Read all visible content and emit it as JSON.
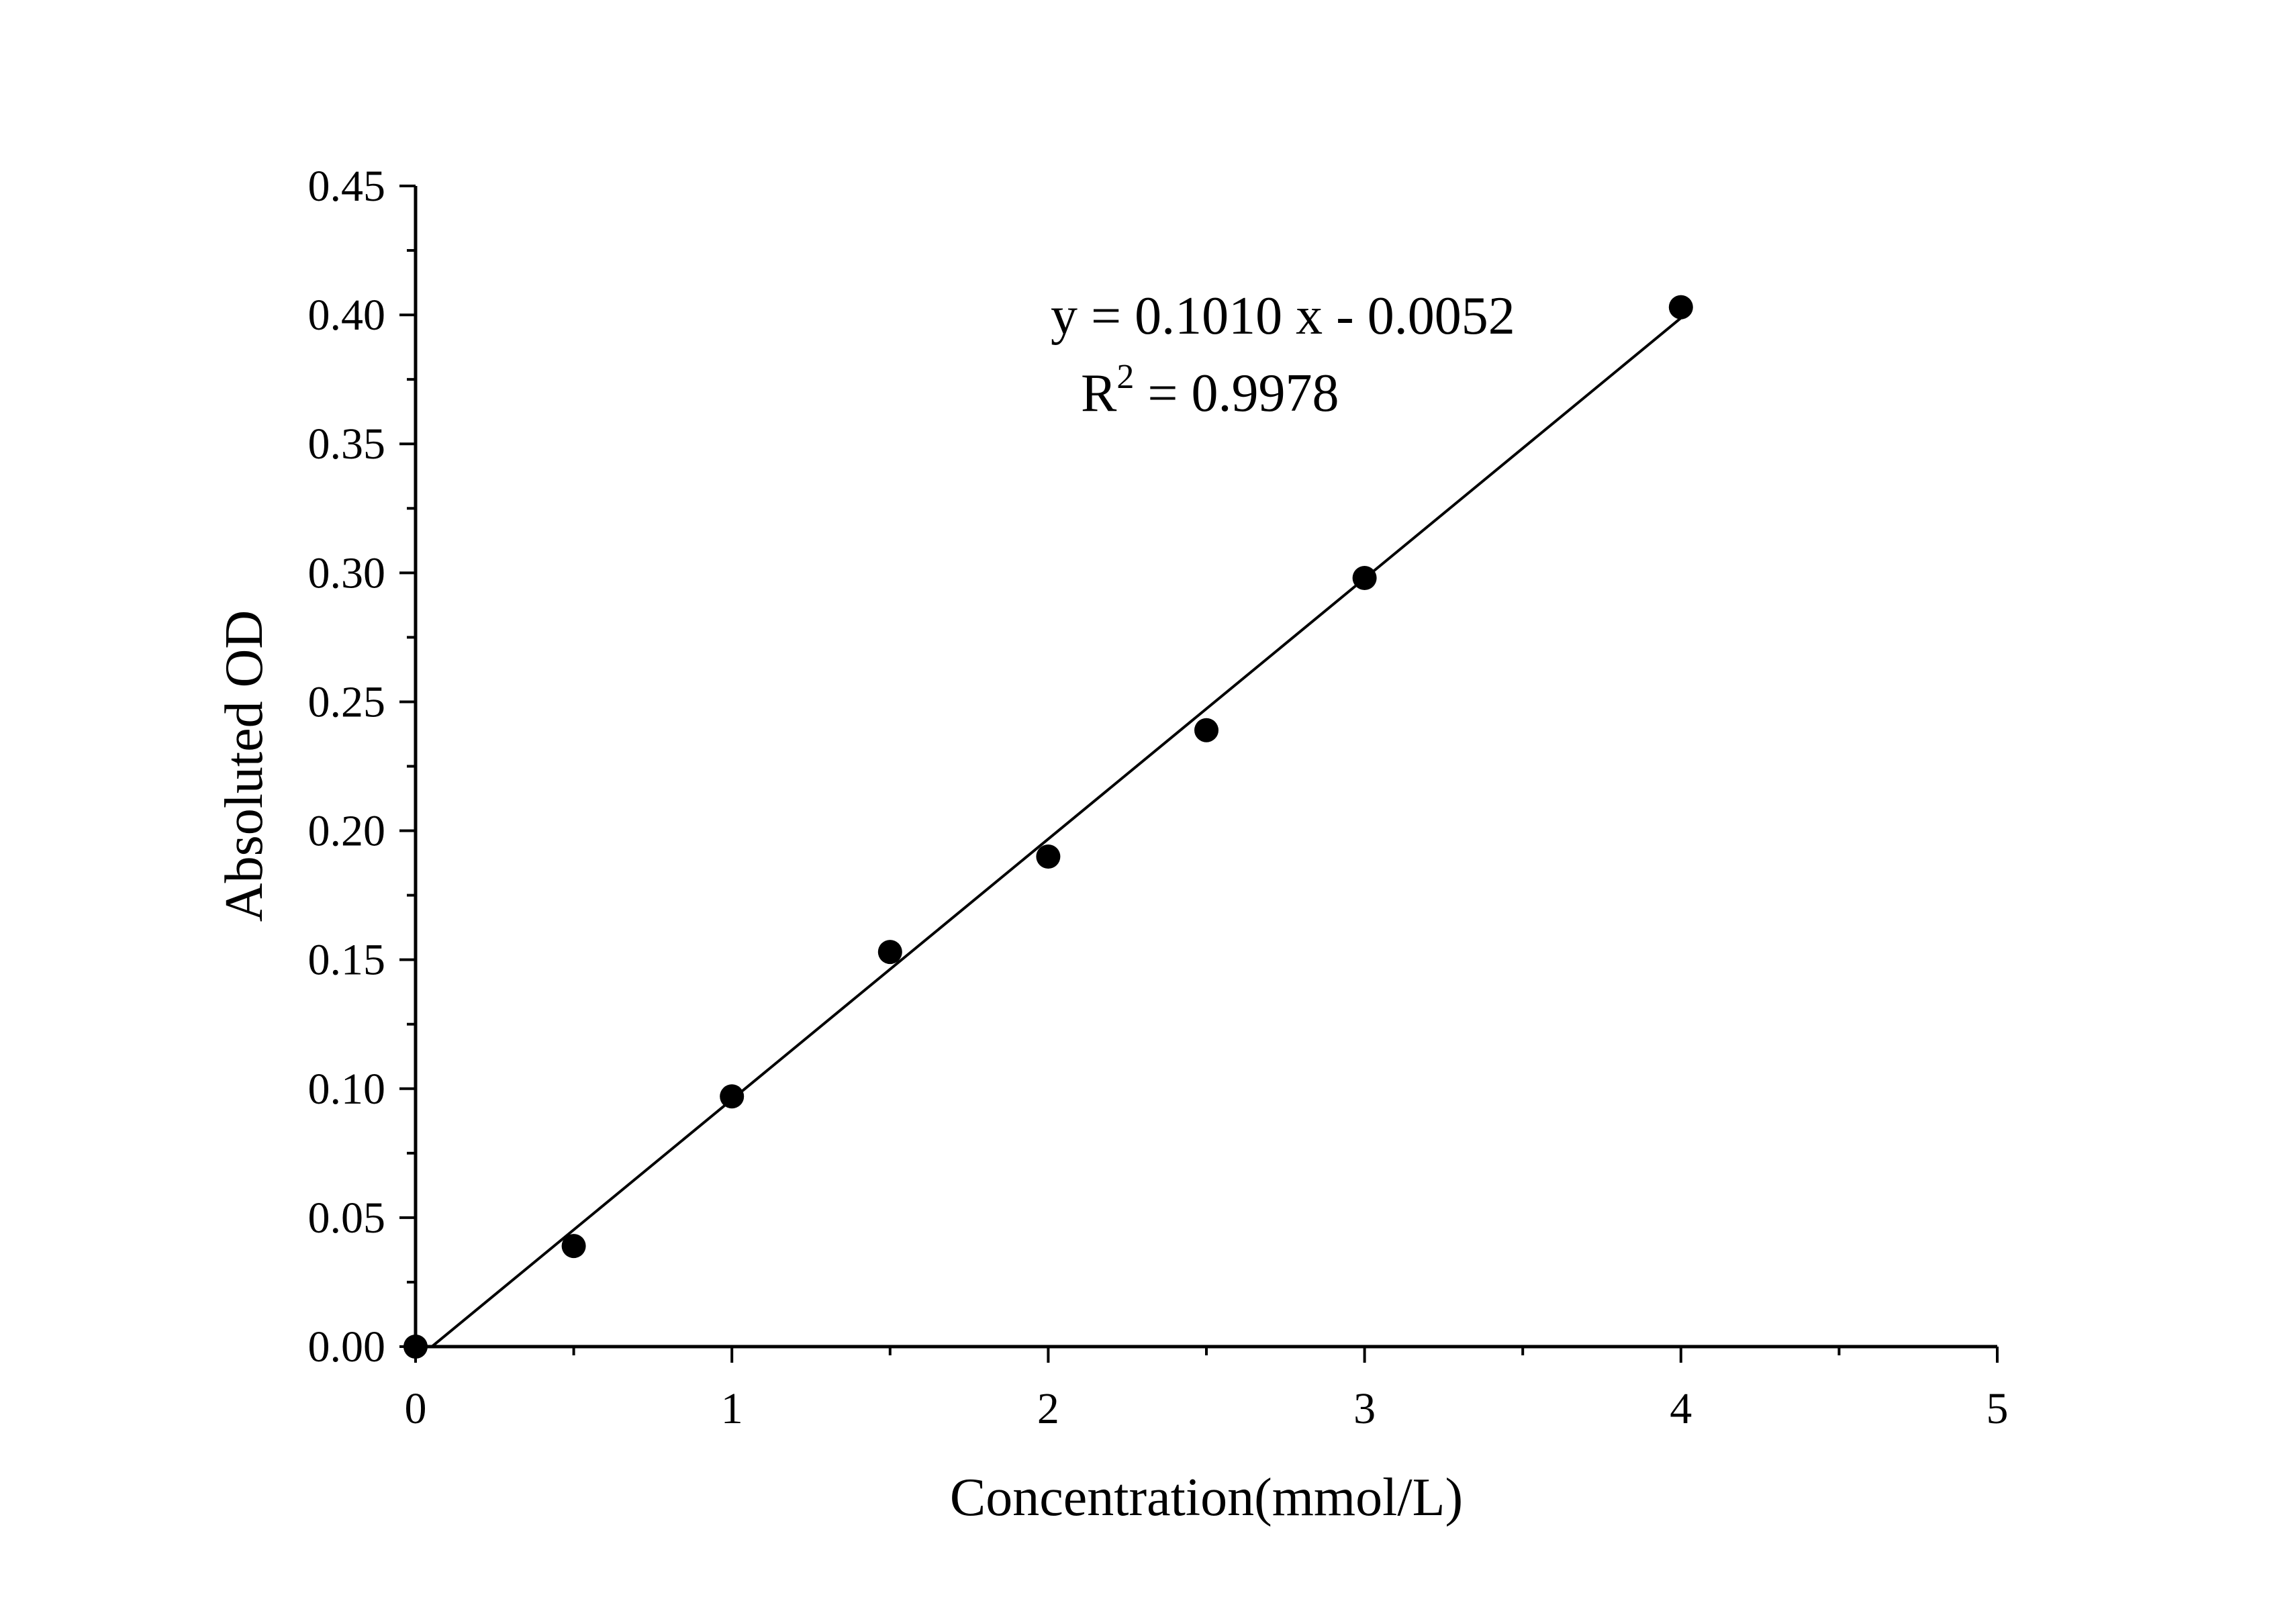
{
  "chart_data": {
    "type": "scatter",
    "title": "",
    "xlabel": "Concentration(mmol/L)",
    "ylabel": "Absoluted OD",
    "xlim": [
      0,
      5
    ],
    "ylim": [
      0,
      0.45
    ],
    "x_ticks": [
      "0",
      "1",
      "2",
      "3",
      "4",
      "5"
    ],
    "y_ticks": [
      "0.00",
      "0.05",
      "0.10",
      "0.15",
      "0.20",
      "0.25",
      "0.30",
      "0.35",
      "0.40",
      "0.45"
    ],
    "grid": false,
    "points": [
      {
        "x": 0,
        "y": 0.0
      },
      {
        "x": 0.5,
        "y": 0.039
      },
      {
        "x": 1.0,
        "y": 0.097
      },
      {
        "x": 1.5,
        "y": 0.153
      },
      {
        "x": 2.0,
        "y": 0.19
      },
      {
        "x": 2.5,
        "y": 0.239
      },
      {
        "x": 3.0,
        "y": 0.298
      },
      {
        "x": 4.0,
        "y": 0.403
      }
    ],
    "fit": {
      "slope": 0.101,
      "intercept": -0.0052,
      "x_range": [
        0.05,
        4.0
      ]
    },
    "annotation": {
      "equation": "y = 0.1010 x - 0.0052",
      "r2_prefix": "R",
      "r2_sup": "2",
      "r2_value": " = 0.9978"
    },
    "marker_color": "#000000"
  }
}
